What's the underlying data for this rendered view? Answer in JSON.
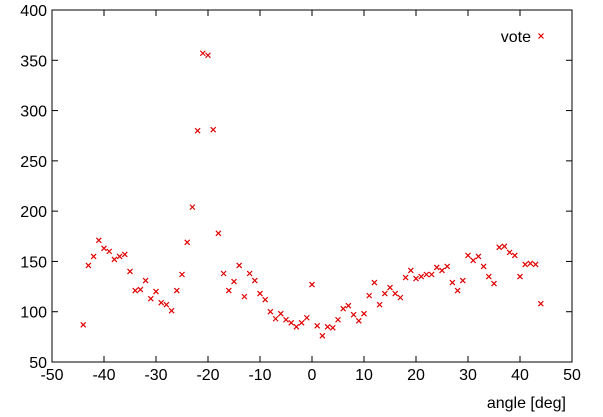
{
  "chart_data": {
    "type": "scatter",
    "title": "",
    "xlabel": "angle [deg]",
    "ylabel": "",
    "xlim": [
      -50,
      50
    ],
    "ylim": [
      50,
      400
    ],
    "xticks": [
      -50,
      -40,
      -30,
      -20,
      -10,
      0,
      10,
      20,
      30,
      40,
      50
    ],
    "yticks": [
      50,
      100,
      150,
      200,
      250,
      300,
      350,
      400
    ],
    "grid": false,
    "legend_position": "top-right",
    "series": [
      {
        "name": "vote",
        "color": "#e00000",
        "marker": "x",
        "points": [
          [
            -44,
            87
          ],
          [
            -43,
            146
          ],
          [
            -42,
            155
          ],
          [
            -41,
            171
          ],
          [
            -40,
            163
          ],
          [
            -39,
            160
          ],
          [
            -38,
            152
          ],
          [
            -37,
            155
          ],
          [
            -36,
            157
          ],
          [
            -35,
            140
          ],
          [
            -34,
            121
          ],
          [
            -33,
            122
          ],
          [
            -32,
            131
          ],
          [
            -31,
            113
          ],
          [
            -30,
            120
          ],
          [
            -29,
            109
          ],
          [
            -28,
            107
          ],
          [
            -27,
            101
          ],
          [
            -26,
            121
          ],
          [
            -25,
            137
          ],
          [
            -24,
            169
          ],
          [
            -23,
            204
          ],
          [
            -22,
            280
          ],
          [
            -21,
            357
          ],
          [
            -20,
            355
          ],
          [
            -19,
            281
          ],
          [
            -18,
            178
          ],
          [
            -17,
            138
          ],
          [
            -16,
            121
          ],
          [
            -15,
            130
          ],
          [
            -14,
            146
          ],
          [
            -13,
            115
          ],
          [
            -12,
            138
          ],
          [
            -11,
            131
          ],
          [
            -10,
            118
          ],
          [
            -9,
            112
          ],
          [
            -8,
            100
          ],
          [
            -7,
            93
          ],
          [
            -6,
            98
          ],
          [
            -5,
            92
          ],
          [
            -4,
            89
          ],
          [
            -3,
            85
          ],
          [
            -2,
            89
          ],
          [
            -1,
            94
          ],
          [
            0,
            127
          ],
          [
            1,
            86
          ],
          [
            2,
            76
          ],
          [
            3,
            85
          ],
          [
            4,
            84
          ],
          [
            5,
            92
          ],
          [
            6,
            103
          ],
          [
            7,
            106
          ],
          [
            8,
            97
          ],
          [
            9,
            91
          ],
          [
            10,
            98
          ],
          [
            11,
            116
          ],
          [
            12,
            129
          ],
          [
            13,
            107
          ],
          [
            14,
            118
          ],
          [
            15,
            124
          ],
          [
            16,
            118
          ],
          [
            17,
            114
          ],
          [
            18,
            134
          ],
          [
            19,
            141
          ],
          [
            20,
            133
          ],
          [
            21,
            135
          ],
          [
            22,
            137
          ],
          [
            23,
            137
          ],
          [
            24,
            144
          ],
          [
            25,
            141
          ],
          [
            26,
            145
          ],
          [
            27,
            129
          ],
          [
            28,
            121
          ],
          [
            29,
            131
          ],
          [
            30,
            156
          ],
          [
            31,
            151
          ],
          [
            32,
            155
          ],
          [
            33,
            145
          ],
          [
            34,
            135
          ],
          [
            35,
            128
          ],
          [
            36,
            164
          ],
          [
            37,
            165
          ],
          [
            38,
            159
          ],
          [
            39,
            156
          ],
          [
            40,
            135
          ],
          [
            41,
            147
          ],
          [
            42,
            148
          ],
          [
            43,
            147
          ],
          [
            44,
            108
          ]
        ]
      }
    ]
  }
}
